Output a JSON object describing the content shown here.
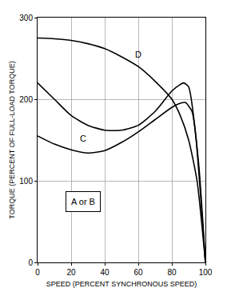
{
  "chart_data": {
    "type": "line",
    "x_label": "SPEED (PERCENT SYNCHRONOUS SPEED)",
    "y_label": "TORQUE (PERCENT OF FULL-LOAD TORQUE)",
    "xlim": [
      0,
      100
    ],
    "ylim": [
      0,
      300
    ],
    "xticks": [
      0,
      20,
      40,
      60,
      80,
      100
    ],
    "yticks": [
      0,
      100,
      200,
      300
    ],
    "grid": true,
    "series": [
      {
        "name": "A or B",
        "color": "#000000",
        "line_style": "solid",
        "x": [
          0,
          10,
          20,
          30,
          40,
          50,
          60,
          70,
          80,
          85,
          88,
          92,
          96,
          100
        ],
        "values": [
          155,
          145,
          138,
          134,
          137,
          147,
          160,
          175,
          190,
          195,
          196,
          185,
          120,
          0
        ]
      },
      {
        "name": "C",
        "color": "#000000",
        "line_style": "solid",
        "x": [
          0,
          10,
          20,
          30,
          40,
          50,
          60,
          70,
          80,
          85,
          87,
          90,
          94,
          100
        ],
        "values": [
          220,
          200,
          180,
          168,
          162,
          162,
          168,
          185,
          210,
          218,
          220,
          215,
          160,
          0
        ]
      },
      {
        "name": "D",
        "color": "#000000",
        "line_style": "solid",
        "x": [
          0,
          10,
          20,
          30,
          40,
          50,
          60,
          70,
          80,
          85,
          90,
          95,
          100
        ],
        "values": [
          275,
          274,
          272,
          268,
          262,
          252,
          240,
          222,
          200,
          180,
          150,
          100,
          0
        ]
      }
    ]
  }
}
